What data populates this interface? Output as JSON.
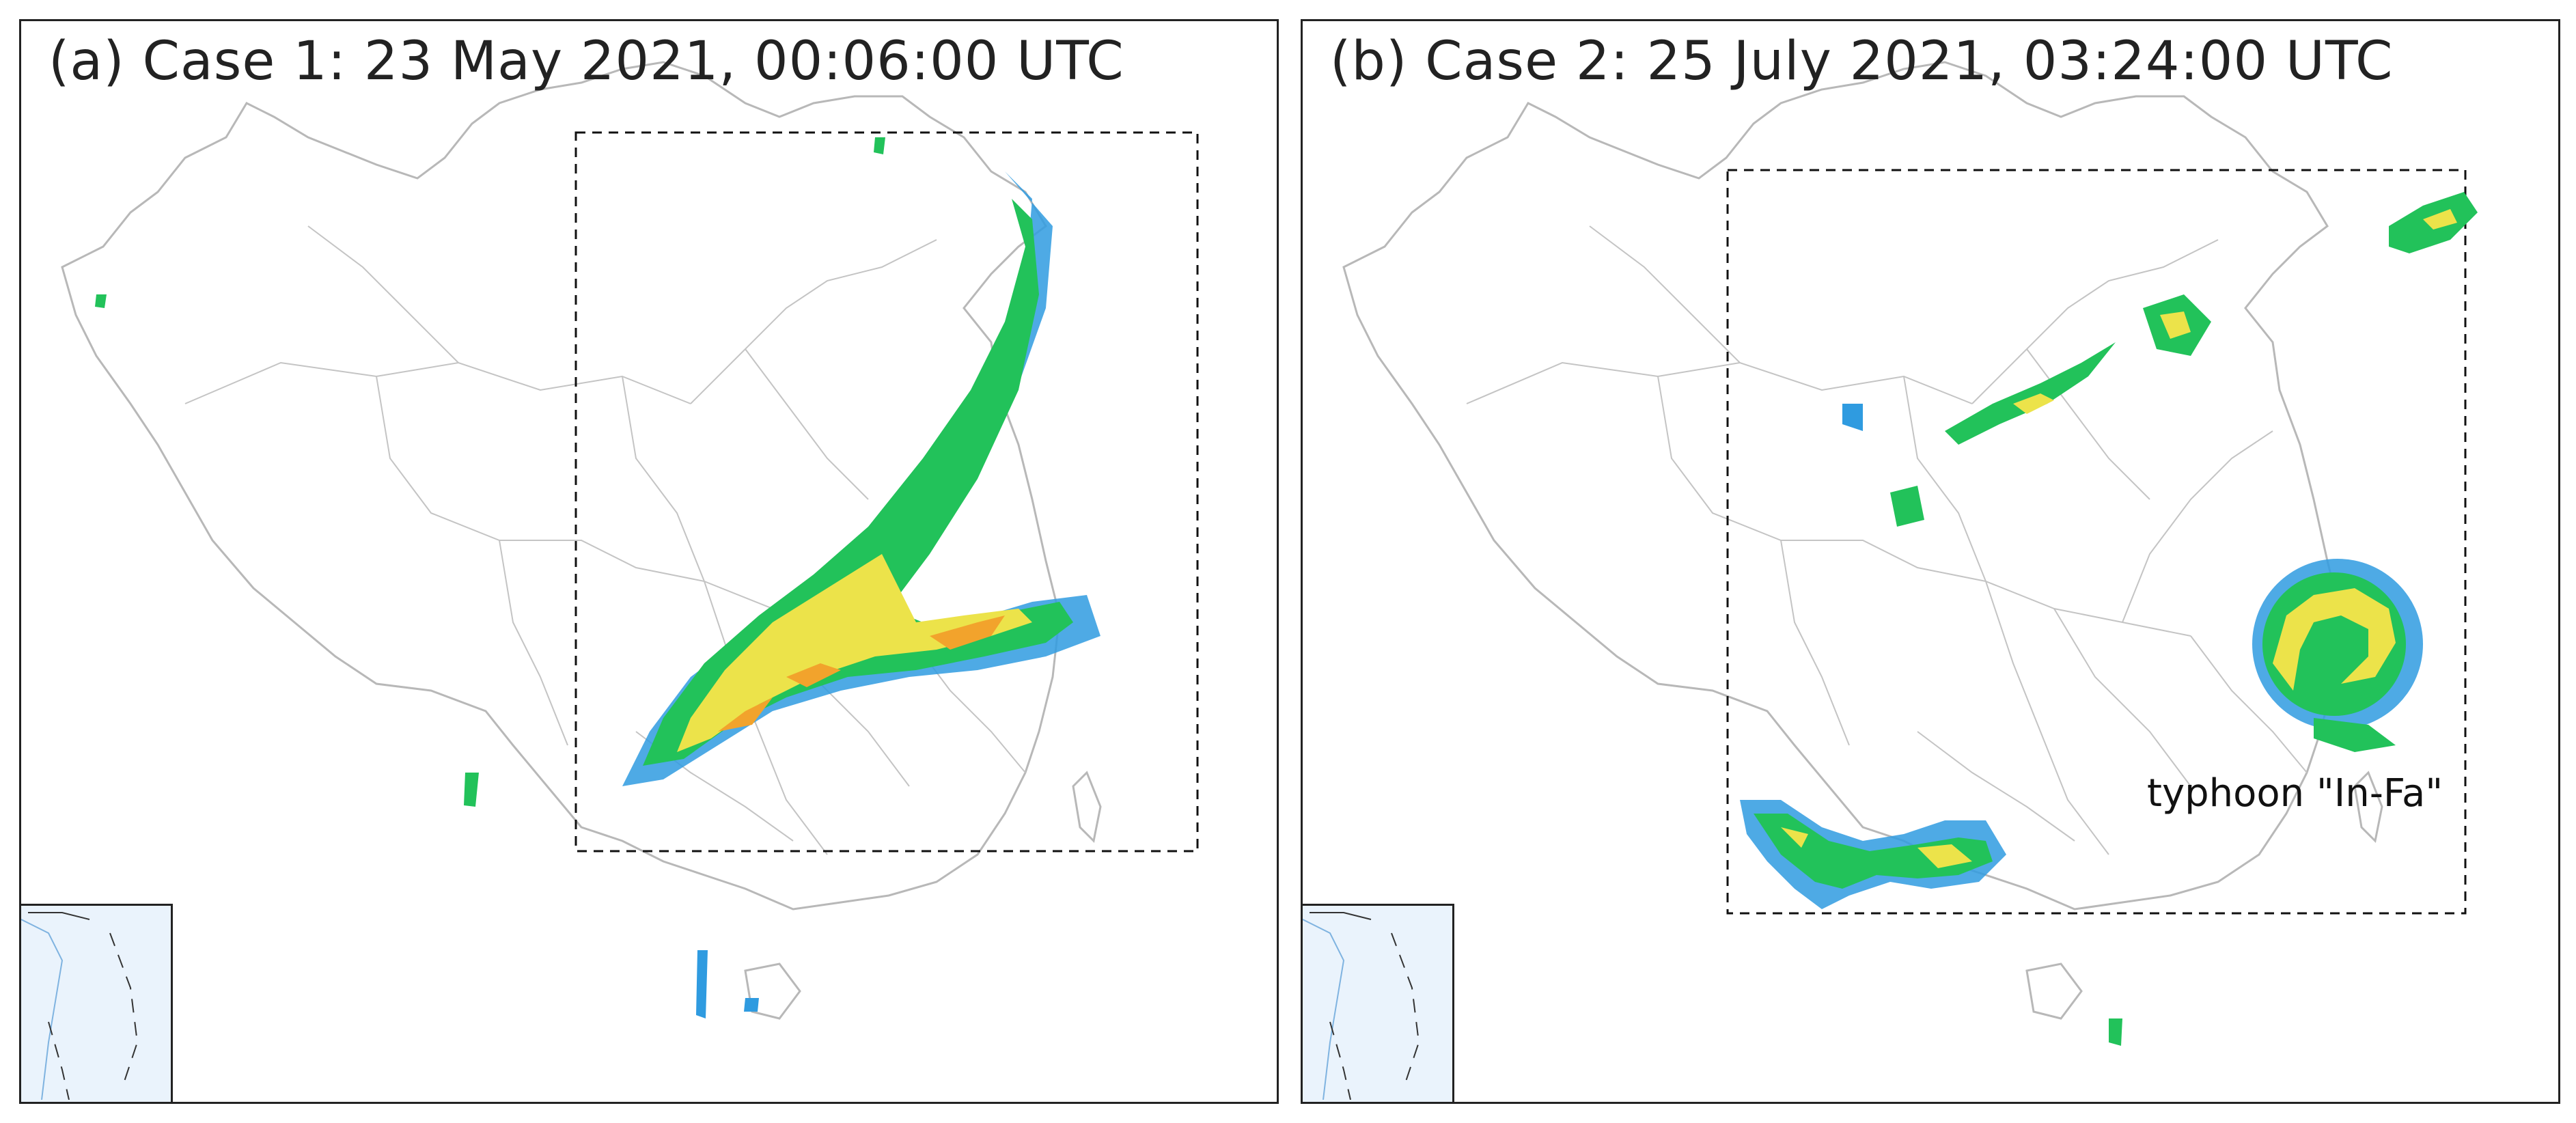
{
  "panels": [
    {
      "id": "a",
      "title": "(a) Case 1: 23 May 2021, 00:06:00 UTC"
    },
    {
      "id": "b",
      "title": "(b) Case 2: 25 July 2021, 03:24:00 UTC",
      "annotation": "typhoon \"In-Fa\""
    }
  ],
  "colors": {
    "boundary": "#b8b8b8",
    "frame": "#222222",
    "rain_light": "#2f9be0",
    "rain_moderate": "#22c25a",
    "rain_heavy": "#ece34a",
    "rain_intense": "#f2a32c",
    "inset_sea": "#eaf3fc"
  }
}
